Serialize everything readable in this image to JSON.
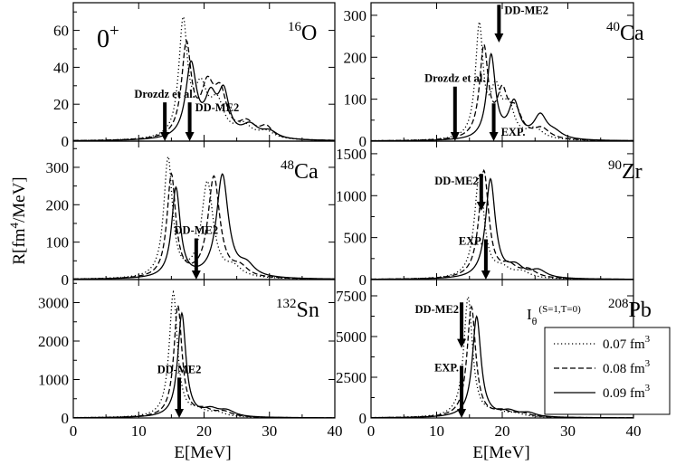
{
  "figure": {
    "ylabel": "R[fm",
    "ylabel_sup": "4",
    "ylabel_tail": "/MeV]",
    "xlabel": "E[MeV]",
    "multipole": "0",
    "multipole_sup": "+",
    "operator_label": "I",
    "operator_sub": "θ",
    "operator_sup": "(S=1,T=0)"
  },
  "legend": {
    "entries": [
      {
        "label": "0.07 fm",
        "sup": "3",
        "dash": "1.2,2.8"
      },
      {
        "label": "0.08 fm",
        "sup": "3",
        "dash": "6,3"
      },
      {
        "label": "0.09 fm",
        "sup": "3",
        "dash": ""
      }
    ]
  },
  "chart_data": [
    {
      "type": "line",
      "panel": "top-left",
      "nucleus_mass": "16",
      "nucleus_symbol": "O",
      "xlim": [
        0,
        40
      ],
      "ylim": [
        0,
        75
      ],
      "xticks": [
        0,
        10,
        20,
        30,
        40
      ],
      "yticks": [
        0,
        20,
        40,
        60
      ],
      "series": [
        {
          "name": "0.07 fm3",
          "peaks": [
            [
              16.8,
              62,
              0.8
            ],
            [
              19.5,
              25,
              1.2
            ],
            [
              22,
              18,
              1.3
            ],
            [
              26,
              7,
              1.5
            ],
            [
              29.5,
              4,
              1.5
            ]
          ]
        },
        {
          "name": "0.08 fm3",
          "peaks": [
            [
              17.3,
              50,
              0.9
            ],
            [
              20.5,
              25,
              1.2
            ],
            [
              22.5,
              22,
              1.2
            ],
            [
              26.5,
              8,
              1.5
            ],
            [
              29.5,
              6,
              1.2
            ]
          ]
        },
        {
          "name": "0.09 fm3",
          "peaks": [
            [
              18,
              40,
              1.0
            ],
            [
              21,
              20,
              1.1
            ],
            [
              23,
              23,
              1.0
            ],
            [
              27,
              7,
              1.5
            ],
            [
              30,
              4,
              1.5
            ]
          ]
        }
      ],
      "arrows": [
        {
          "label": "Drozdz et al.",
          "x": 14,
          "top": 21,
          "bottom": 0,
          "label_side": "top"
        },
        {
          "label": "DD-ME2",
          "x": 17.8,
          "top": 21,
          "bottom": 0,
          "label_side": "right"
        }
      ]
    },
    {
      "type": "line",
      "panel": "top-right",
      "nucleus_mass": "40",
      "nucleus_symbol": "Ca",
      "xlim": [
        0,
        40
      ],
      "ylim": [
        0,
        330
      ],
      "xticks": [
        0,
        10,
        20,
        30,
        40
      ],
      "yticks": [
        0,
        100,
        200,
        300
      ],
      "series": [
        {
          "name": "0.07 fm3",
          "peaks": [
            [
              16.5,
              265,
              0.7
            ],
            [
              19,
              110,
              1.0
            ],
            [
              21,
              70,
              1.0
            ],
            [
              25,
              25,
              1.5
            ]
          ]
        },
        {
          "name": "0.08 fm3",
          "peaks": [
            [
              17.2,
              215,
              0.8
            ],
            [
              20,
              100,
              1.0
            ],
            [
              22,
              60,
              1.2
            ],
            [
              26,
              25,
              1.5
            ]
          ]
        },
        {
          "name": "0.09 fm3",
          "peaks": [
            [
              18.3,
              200,
              0.8
            ],
            [
              21.8,
              85,
              1.0
            ],
            [
              25.8,
              55,
              1.2
            ],
            [
              28,
              15,
              1.5
            ]
          ]
        }
      ],
      "arrows": [
        {
          "label": "DD-ME2",
          "x": 19.5,
          "top": 325,
          "bottom": 235,
          "label_side": "right"
        },
        {
          "label": "Drozdz et al.",
          "x": 12.8,
          "top": 130,
          "bottom": 0,
          "label_side": "top"
        },
        {
          "label": "EXP.",
          "x": 18.7,
          "top": 90,
          "bottom": 0,
          "label_side": "right-low"
        }
      ]
    },
    {
      "type": "line",
      "panel": "middle-left",
      "nucleus_mass": "48",
      "nucleus_symbol": "Ca",
      "xlim": [
        0,
        40
      ],
      "ylim": [
        0,
        370
      ],
      "xticks": [
        0,
        10,
        20,
        30,
        40
      ],
      "yticks": [
        0,
        100,
        200,
        300
      ],
      "series": [
        {
          "name": "0.07 fm3",
          "peaks": [
            [
              14.5,
              320,
              0.8
            ],
            [
              20.5,
              255,
              1.1
            ],
            [
              24.5,
              25,
              1.5
            ]
          ]
        },
        {
          "name": "0.08 fm3",
          "peaks": [
            [
              15,
              275,
              0.8
            ],
            [
              21.5,
              270,
              1.1
            ],
            [
              25.5,
              25,
              1.5
            ]
          ]
        },
        {
          "name": "0.09 fm3",
          "peaks": [
            [
              15.7,
              240,
              0.8
            ],
            [
              22.8,
              275,
              1.1
            ],
            [
              26.5,
              30,
              1.5
            ]
          ]
        }
      ],
      "arrows": [
        {
          "label": "DD-ME2",
          "x": 18.8,
          "top": 110,
          "bottom": 0,
          "label_side": "top"
        }
      ]
    },
    {
      "type": "line",
      "panel": "middle-right",
      "nucleus_mass": "90",
      "nucleus_symbol": "Zr",
      "xlim": [
        0,
        40
      ],
      "ylim": [
        0,
        1650
      ],
      "xticks": [
        0,
        10,
        20,
        30,
        40
      ],
      "yticks": [
        0,
        500,
        1000,
        1500
      ],
      "series": [
        {
          "name": "0.07 fm3",
          "peaks": [
            [
              16.5,
              1220,
              0.9
            ],
            [
              20,
              100,
              1.5
            ],
            [
              23,
              70,
              1.5
            ]
          ]
        },
        {
          "name": "0.08 fm3",
          "peaks": [
            [
              17.2,
              1280,
              0.9
            ],
            [
              21,
              130,
              1.5
            ],
            [
              24,
              90,
              1.5
            ]
          ]
        },
        {
          "name": "0.09 fm3",
          "peaks": [
            [
              18.2,
              1180,
              0.9
            ],
            [
              22,
              130,
              1.5
            ],
            [
              25.5,
              90,
              1.5
            ]
          ]
        }
      ],
      "arrows": [
        {
          "label": "DD-ME2",
          "x": 16.8,
          "top": 1260,
          "bottom": 820,
          "label_side": "left"
        },
        {
          "label": "EXP.",
          "x": 17.5,
          "top": 480,
          "bottom": 0,
          "label_side": "left-top"
        }
      ]
    },
    {
      "type": "line",
      "panel": "bottom-left",
      "nucleus_mass": "132",
      "nucleus_symbol": "Sn",
      "xlim": [
        0,
        40
      ],
      "ylim": [
        0,
        3600
      ],
      "xticks": [
        0,
        10,
        20,
        30,
        40
      ],
      "yticks": [
        0,
        1000,
        2000,
        3000
      ],
      "series": [
        {
          "name": "0.07 fm3",
          "peaks": [
            [
              15.3,
              3250,
              0.75
            ],
            [
              19,
              150,
              1.5
            ],
            [
              22,
              110,
              1.5
            ]
          ]
        },
        {
          "name": "0.08 fm3",
          "peaks": [
            [
              16,
              2900,
              0.75
            ],
            [
              20,
              170,
              1.5
            ],
            [
              23,
              130,
              1.5
            ]
          ]
        },
        {
          "name": "0.09 fm3",
          "peaks": [
            [
              16.6,
              2700,
              0.75
            ],
            [
              21,
              180,
              1.5
            ],
            [
              23.5,
              150,
              1.5
            ]
          ]
        }
      ],
      "arrows": [
        {
          "label": "DD-ME2",
          "x": 16.2,
          "top": 1050,
          "bottom": 0,
          "label_side": "top"
        }
      ]
    },
    {
      "type": "line",
      "panel": "bottom-right",
      "nucleus_mass": "208",
      "nucleus_symbol": "Pb",
      "xlim": [
        0,
        40
      ],
      "ylim": [
        0,
        8500
      ],
      "xticks": [
        0,
        10,
        20,
        30,
        40
      ],
      "yticks": [
        0,
        2500,
        5000,
        7500
      ],
      "series": [
        {
          "name": "0.07 fm3",
          "peaks": [
            [
              14.8,
              7400,
              0.8
            ],
            [
              19,
              300,
              1.5
            ],
            [
              22,
              200,
              1.5
            ]
          ]
        },
        {
          "name": "0.08 fm3",
          "peaks": [
            [
              15.3,
              6800,
              0.8
            ],
            [
              20,
              320,
              1.5
            ],
            [
              23,
              220,
              1.5
            ]
          ]
        },
        {
          "name": "0.09 fm3",
          "peaks": [
            [
              16.1,
              6200,
              0.8
            ],
            [
              21,
              340,
              1.5
            ],
            [
              24,
              240,
              1.5
            ]
          ]
        }
      ],
      "arrows": [
        {
          "label": "DD-ME2",
          "x": 13.8,
          "top": 7100,
          "bottom": 4300,
          "label_side": "left"
        },
        {
          "label": "EXP.",
          "x": 13.8,
          "top": 3200,
          "bottom": 0,
          "label_side": "left-top"
        }
      ]
    }
  ]
}
